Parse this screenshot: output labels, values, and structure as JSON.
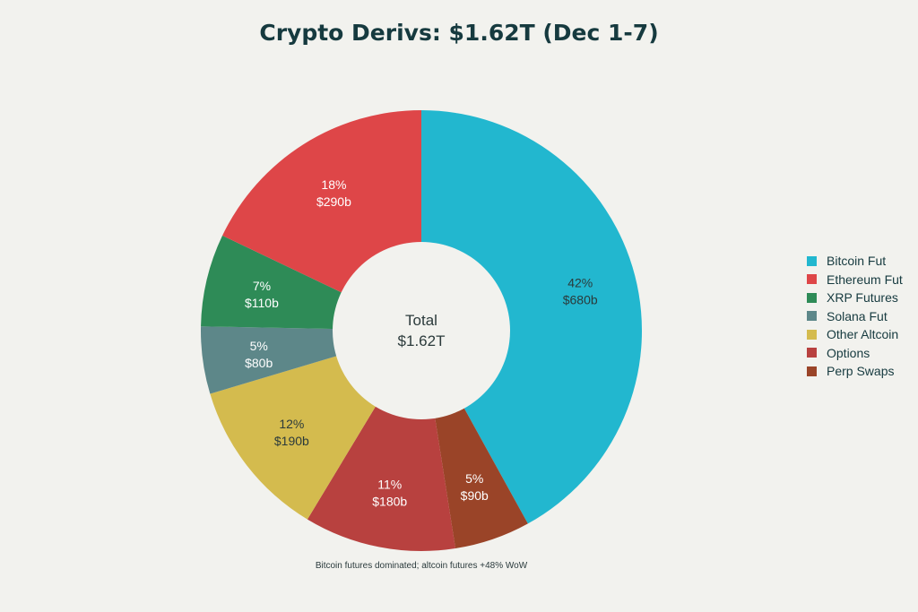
{
  "chart_data": {
    "type": "pie",
    "donut": true,
    "title": "Crypto Derivs: $1.62T (Dec 1-7)",
    "center_label": {
      "line1": "Total",
      "line2": "$1.62T"
    },
    "caption": "Bitcoin futures dominated; altcoin futures +48% WoW",
    "legend_placement": "right",
    "slices": [
      {
        "name": "Bitcoin Fut",
        "value": 680,
        "percent_label": "42%",
        "value_label": "$680b",
        "color": "#22b7cf",
        "label_color": "#2b3a3b"
      },
      {
        "name": "Perp Swaps",
        "value": 90,
        "percent_label": "5%",
        "value_label": "$90b",
        "color": "#9a4428",
        "label_color": "#ffffff"
      },
      {
        "name": "Options",
        "value": 180,
        "percent_label": "11%",
        "value_label": "$180b",
        "color": "#b8413f",
        "label_color": "#ffffff"
      },
      {
        "name": "Other Altcoin",
        "value": 190,
        "percent_label": "12%",
        "value_label": "$190b",
        "color": "#d4bb4e",
        "label_color": "#2b3a3b"
      },
      {
        "name": "Solana Fut",
        "value": 80,
        "percent_label": "5%",
        "value_label": "$80b",
        "color": "#5d8789",
        "label_color": "#ffffff"
      },
      {
        "name": "XRP Futures",
        "value": 110,
        "percent_label": "7%",
        "value_label": "$110b",
        "color": "#2e8b57",
        "label_color": "#ffffff"
      },
      {
        "name": "Ethereum Fut",
        "value": 290,
        "percent_label": "18%",
        "value_label": "$290b",
        "color": "#de4648",
        "label_color": "#ffffff"
      }
    ],
    "legend_order": [
      "Bitcoin Fut",
      "Ethereum Fut",
      "XRP Futures",
      "Solana Fut",
      "Other Altcoin",
      "Options",
      "Perp Swaps"
    ]
  }
}
